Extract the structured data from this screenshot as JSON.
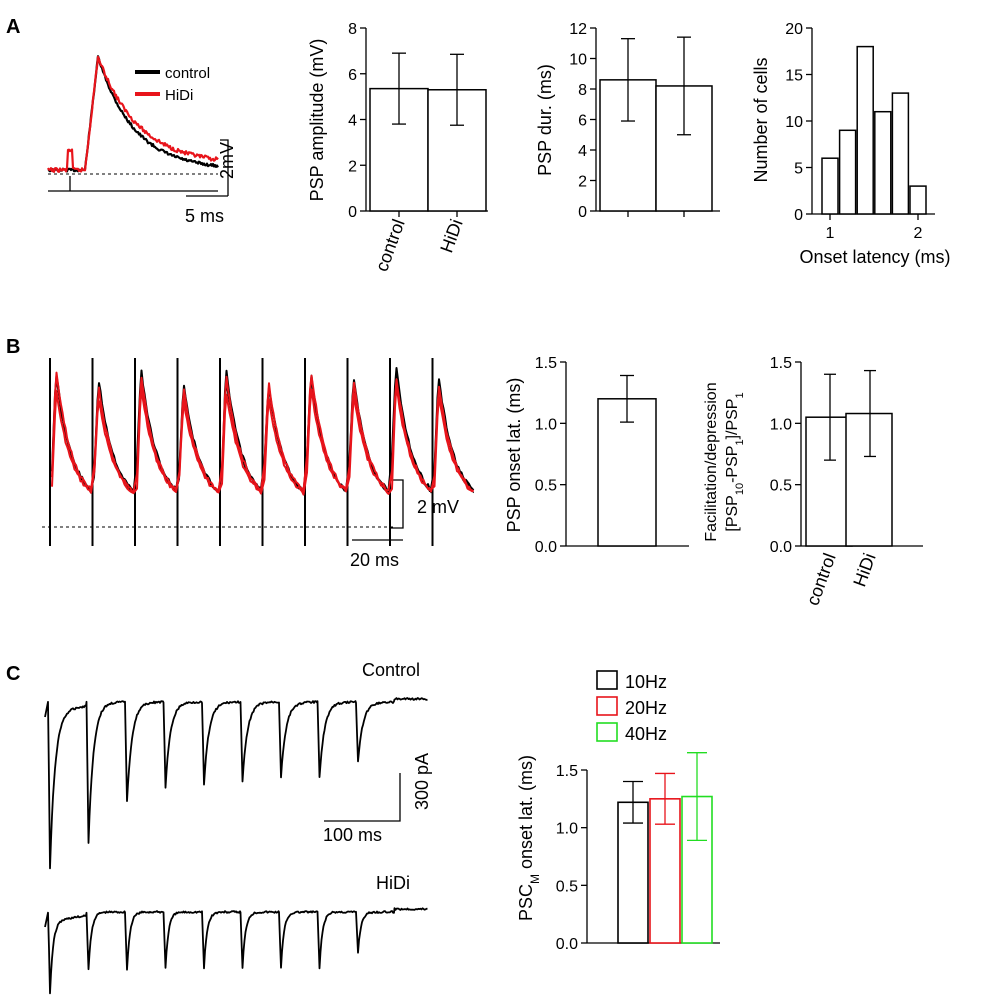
{
  "panels": {
    "a": "A",
    "b": "B",
    "c": "C"
  },
  "colors": {
    "control": "#000000",
    "hidi": "#e8141b",
    "hz10": "#000000",
    "hz20": "#e8141b",
    "hz40": "#22dd22"
  },
  "traceA": {
    "legend": [
      "control",
      "HiDi"
    ],
    "scale_y": "2mV",
    "scale_x": "5 ms",
    "series": [
      {
        "name": "control",
        "key": "control"
      },
      {
        "name": "HiDi",
        "key": "hidi"
      }
    ]
  },
  "traceB": {
    "scale_y": "2 mV",
    "scale_x": "20 ms",
    "pulses": 10
  },
  "traceC": {
    "title_control": "Control",
    "title_hidi": "HiDi",
    "scale_y": "300 pA",
    "scale_x": "100 ms",
    "pulses": 9
  },
  "chart_data": [
    {
      "id": "amp",
      "type": "bar",
      "title": "",
      "categories": [
        "control",
        "HiDi"
      ],
      "values": [
        5.35,
        5.3
      ],
      "errors": [
        1.55,
        1.55
      ],
      "ylabel": "PSP amplitude (mV)",
      "ylim": [
        0,
        8
      ],
      "yticks": [
        "0",
        "2",
        "4",
        "6",
        "8"
      ]
    },
    {
      "id": "dur",
      "type": "bar",
      "title": "",
      "categories": [
        "",
        ""
      ],
      "values": [
        8.6,
        8.2
      ],
      "errors": [
        2.7,
        3.2
      ],
      "ylabel": "PSP dur. (ms)",
      "ylim": [
        0,
        12
      ],
      "yticks": [
        "0",
        "2",
        "4",
        "6",
        "8",
        "10",
        "12"
      ]
    },
    {
      "id": "hist",
      "type": "bar",
      "title": "",
      "bin_centers": [
        1.0,
        1.2,
        1.4,
        1.6,
        1.8,
        2.0
      ],
      "values": [
        6,
        9,
        18,
        11,
        13,
        3
      ],
      "xlabel": "Onset latency (ms)",
      "ylabel": "Number of cells",
      "xticks": [
        "1",
        "2"
      ],
      "ylim": [
        0,
        20
      ],
      "yticks": [
        "0",
        "5",
        "10",
        "15",
        "20"
      ]
    },
    {
      "id": "onsetB",
      "type": "bar",
      "title": "",
      "categories": [
        ""
      ],
      "values": [
        1.2
      ],
      "errors": [
        0.19
      ],
      "ylabel": "PSP onset lat. (ms)",
      "ylim": [
        0,
        1.5
      ],
      "yticks": [
        "0.0",
        "0.5",
        "1.0",
        "1.5"
      ]
    },
    {
      "id": "facil",
      "type": "bar",
      "title": "",
      "categories": [
        "control",
        "HiDi"
      ],
      "values": [
        1.05,
        1.08
      ],
      "errors": [
        0.35,
        0.35
      ],
      "ylabel_line1": "Facilitation/depression",
      "ylabel_line2_parts": [
        "[PSP",
        "10",
        "-PSP",
        "1",
        "]/PSP",
        "1"
      ],
      "ylim": [
        0,
        1.5
      ],
      "yticks": [
        "0.0",
        "0.5",
        "1.0",
        "1.5"
      ]
    },
    {
      "id": "onsetC",
      "type": "bar",
      "title": "",
      "series": [
        {
          "name": "10Hz",
          "value": 1.22,
          "error": 0.18,
          "color": "#000000"
        },
        {
          "name": "20Hz",
          "value": 1.25,
          "error": 0.22,
          "color": "#e8141b"
        },
        {
          "name": "40Hz",
          "value": 1.27,
          "error": 0.38,
          "color": "#22dd22"
        }
      ],
      "ylabel_parts": [
        "PSC",
        "M",
        " onset lat. (ms)"
      ],
      "ylim": [
        0,
        1.5
      ],
      "yticks": [
        "0.0",
        "0.5",
        "1.0",
        "1.5"
      ]
    }
  ]
}
